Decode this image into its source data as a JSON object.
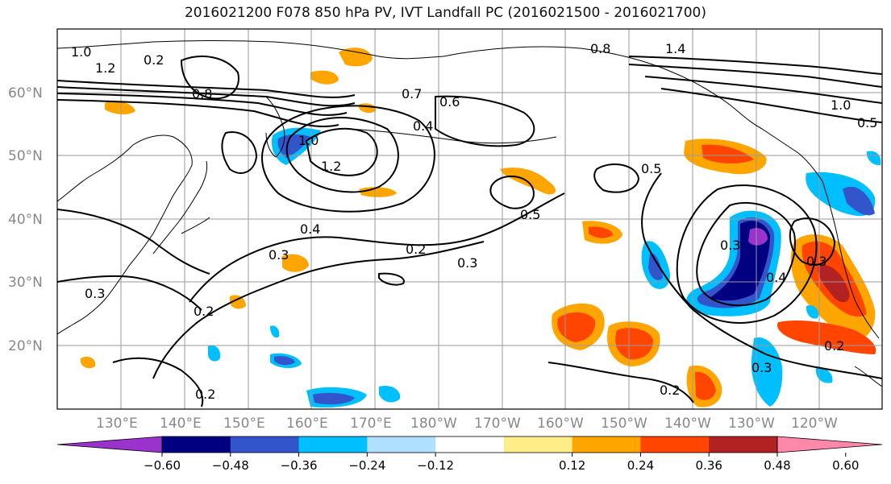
{
  "title": "2016021200 F078 850 hPa PV, IVT Landfall PC (2016021500 - 2016021700)",
  "map": {
    "lat_labels": [
      "60°N",
      "50°N",
      "40°N",
      "30°N",
      "20°N"
    ],
    "lon_labels": [
      "130°E",
      "140°E",
      "150°E",
      "160°E",
      "170°E",
      "180°W",
      "170°W",
      "160°W",
      "150°W",
      "140°W",
      "130°W",
      "120°W"
    ],
    "contour_labels": [
      "1.0",
      "1.2",
      "0.8",
      "0.7",
      "0.6",
      "0.4",
      "1.4",
      "0.8",
      "1.0",
      "0.5",
      "1.0",
      "1.2",
      "0.4",
      "0.3",
      "0.5",
      "0.5",
      "0.2",
      "0.3",
      "0.3",
      "0.2",
      "0.3",
      "0.4",
      "0.3",
      "0.2",
      "0.2",
      "0.3",
      "0.2",
      "0.2"
    ]
  },
  "colorbar": {
    "ticks": [
      "−0.60",
      "−0.48",
      "−0.36",
      "−0.24",
      "−0.12",
      "0.12",
      "0.24",
      "0.36",
      "0.48",
      "0.60"
    ],
    "colors": [
      "#9933cc",
      "#000080",
      "#3355cc",
      "#00bfff",
      "#b0e0ff",
      "#ffffff",
      "#ffee88",
      "#ffa500",
      "#ff4500",
      "#b22222",
      "#ff88aa"
    ]
  },
  "anomaly_colors": {
    "neg_strong": "#9933cc",
    "neg_dark": "#000080",
    "neg_med": "#3355cc",
    "neg_light": "#00bfff",
    "pos_light": "#ffee88",
    "pos_med": "#ffa500",
    "pos_strong": "#ff4500",
    "pos_dark": "#b22222"
  }
}
